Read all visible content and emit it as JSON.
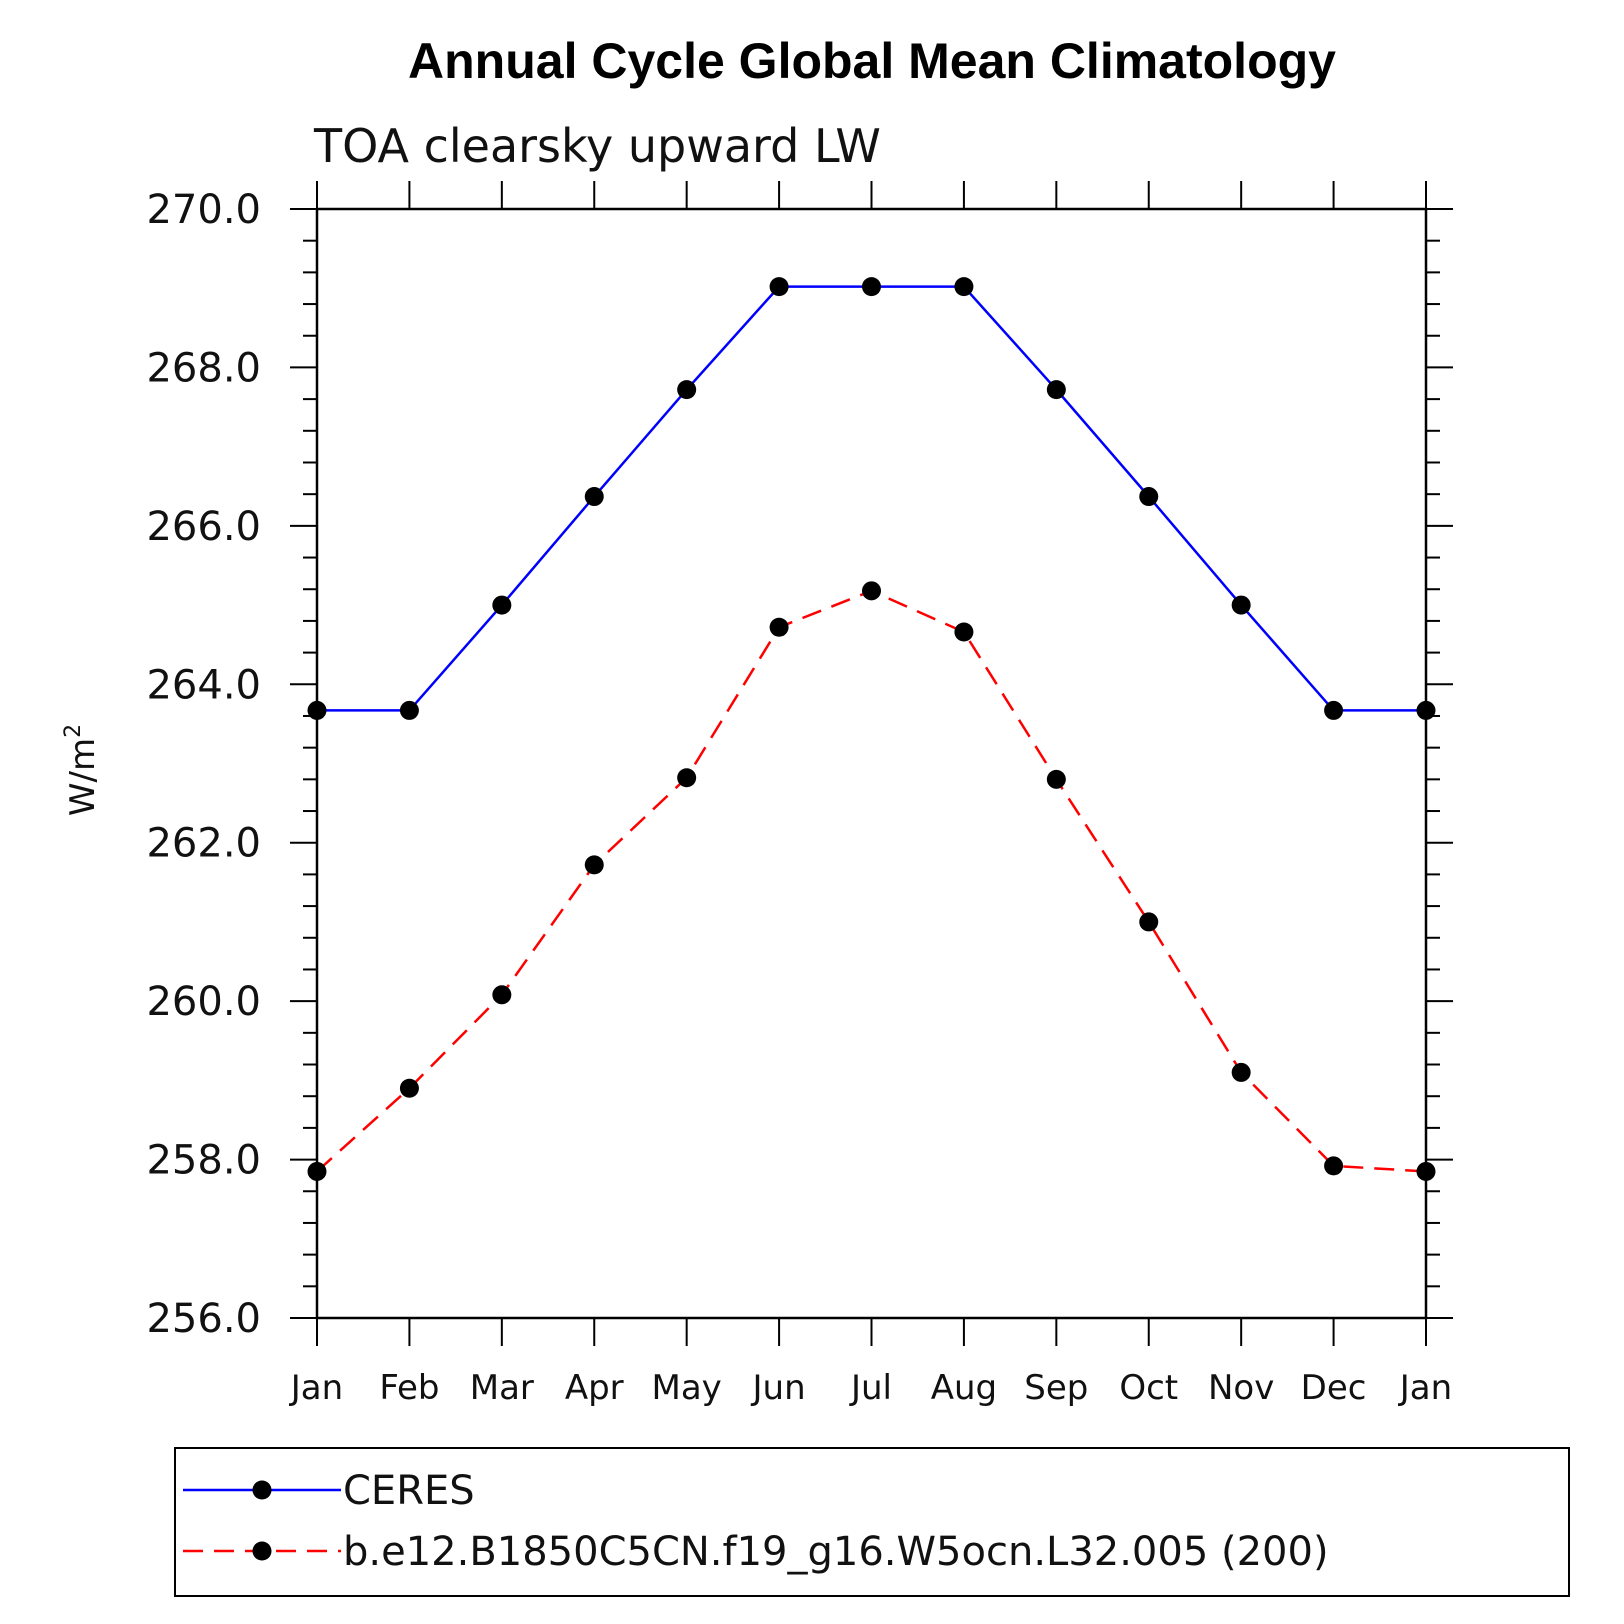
{
  "chart_data": {
    "type": "line",
    "title": "Annual Cycle Global Mean Climatology",
    "subtitle": "TOA clearsky upward LW",
    "ylabel": "W/m",
    "ylabel_superscript": "2",
    "ylim": [
      256.0,
      270.0
    ],
    "yticks": [
      "256.0",
      "258.0",
      "260.0",
      "262.0",
      "264.0",
      "266.0",
      "268.0",
      "270.0"
    ],
    "categories": [
      "Jan",
      "Feb",
      "Mar",
      "Apr",
      "May",
      "Jun",
      "Jul",
      "Aug",
      "Sep",
      "Oct",
      "Nov",
      "Dec",
      "Jan"
    ],
    "legend_position": "bottom",
    "series": [
      {
        "name": "CERES",
        "color": "#0000ff",
        "dash": "solid",
        "values": [
          263.67,
          263.67,
          265.0,
          266.37,
          267.72,
          269.02,
          269.02,
          269.02,
          267.72,
          266.37,
          265.0,
          263.67,
          263.67
        ]
      },
      {
        "name": "b.e12.B1850C5CN.f19_g16.W5ocn.L32.005 (200)",
        "color": "#ff0000",
        "dash": "dashed",
        "values": [
          257.85,
          258.9,
          260.08,
          261.72,
          262.82,
          264.72,
          265.18,
          264.66,
          262.8,
          261.0,
          259.1,
          257.92,
          257.85
        ]
      }
    ]
  }
}
